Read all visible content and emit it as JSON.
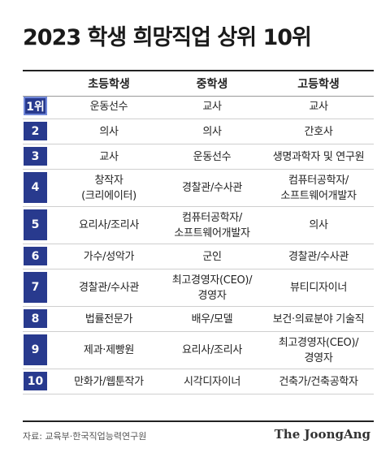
{
  "title": "2023 학생 희망직업 상위 10위",
  "columns": [
    "초등학생",
    "중학생",
    "고등학생"
  ],
  "rows": [
    {
      "rank": "1위",
      "elem": "운동선수",
      "middle": "교사",
      "high": "교사"
    },
    {
      "rank": "2",
      "elem": "의사",
      "middle": "의사",
      "high": "간호사"
    },
    {
      "rank": "3",
      "elem": "교사",
      "middle": "운동선수",
      "high": "생명과학자 및 연구원"
    },
    {
      "rank": "4",
      "elem": "창작자\n(크리에이터)",
      "middle": "경찰관/수사관",
      "high": "컴퓨터공학자/\n소프트웨어개발자"
    },
    {
      "rank": "5",
      "elem": "요리사/조리사",
      "middle": "컴퓨터공학자/\n소프트웨어개발자",
      "high": "의사"
    },
    {
      "rank": "6",
      "elem": "가수/성악가",
      "middle": "군인",
      "high": "경찰관/수사관"
    },
    {
      "rank": "7",
      "elem": "경찰관/수사관",
      "middle": "최고경영자(CEO)/\n경영자",
      "high": "뷰티디자이너"
    },
    {
      "rank": "8",
      "elem": "법률전문가",
      "middle": "배우/모델",
      "high": "보건·의료분야 기술직"
    },
    {
      "rank": "9",
      "elem": "제과·제빵원",
      "middle": "요리사/조리사",
      "high": "최고경영자(CEO)/\n경영자"
    },
    {
      "rank": "10",
      "elem": "만화가/웹툰작가",
      "middle": "시각디자이너",
      "high": "건축가/건축공학자"
    }
  ],
  "source": "자료: 교육부·한국직업능력연구원",
  "logo": "The JoongAng",
  "colors": {
    "rank_bg": "#283a8e",
    "rank_text": "#ffffff",
    "rule": "#222222"
  }
}
